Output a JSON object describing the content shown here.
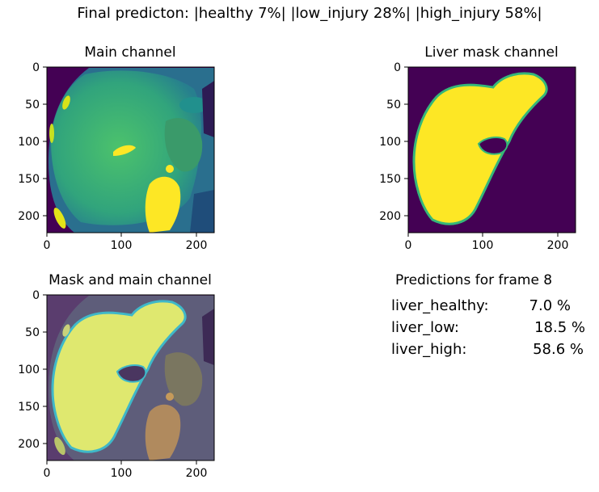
{
  "figure": {
    "suptitle": "Final predicton: |healthy 7%| |low_injury 28%| |high_injury 58%|"
  },
  "panels": [
    {
      "title": "Main channel"
    },
    {
      "title": "Liver mask channel"
    },
    {
      "title": "Mask and main channel"
    }
  ],
  "predictions": {
    "title": "Predictions for frame 8",
    "rows": [
      {
        "label": "liver_healthy:",
        "value": "7.0 %"
      },
      {
        "label": "liver_low:",
        "value": "18.5 %"
      },
      {
        "label": "liver_high:",
        "value": "58.6 %"
      }
    ]
  },
  "colors": {
    "mask_background": "#440154",
    "mask_foreground": "#fde725",
    "ct_mid": "#35b779"
  },
  "chart_data": [
    {
      "type": "heatmap",
      "title": "Main channel",
      "xlim": [
        0,
        224
      ],
      "ylim": [
        224,
        0
      ],
      "xticks": [
        0,
        100,
        200
      ],
      "yticks": [
        0,
        50,
        100,
        150,
        200
      ],
      "colormap": "viridis"
    },
    {
      "type": "heatmap",
      "title": "Liver mask channel",
      "xlim": [
        0,
        224
      ],
      "ylim": [
        224,
        0
      ],
      "xticks": [
        0,
        100,
        200
      ],
      "yticks": [
        0,
        50,
        100,
        150,
        200
      ],
      "colormap": "viridis"
    },
    {
      "type": "heatmap",
      "title": "Mask and main channel",
      "xlim": [
        0,
        224
      ],
      "ylim": [
        224,
        0
      ],
      "xticks": [
        0,
        100,
        200
      ],
      "yticks": [
        0,
        50,
        100,
        150,
        200
      ],
      "colormap": "viridis"
    }
  ]
}
